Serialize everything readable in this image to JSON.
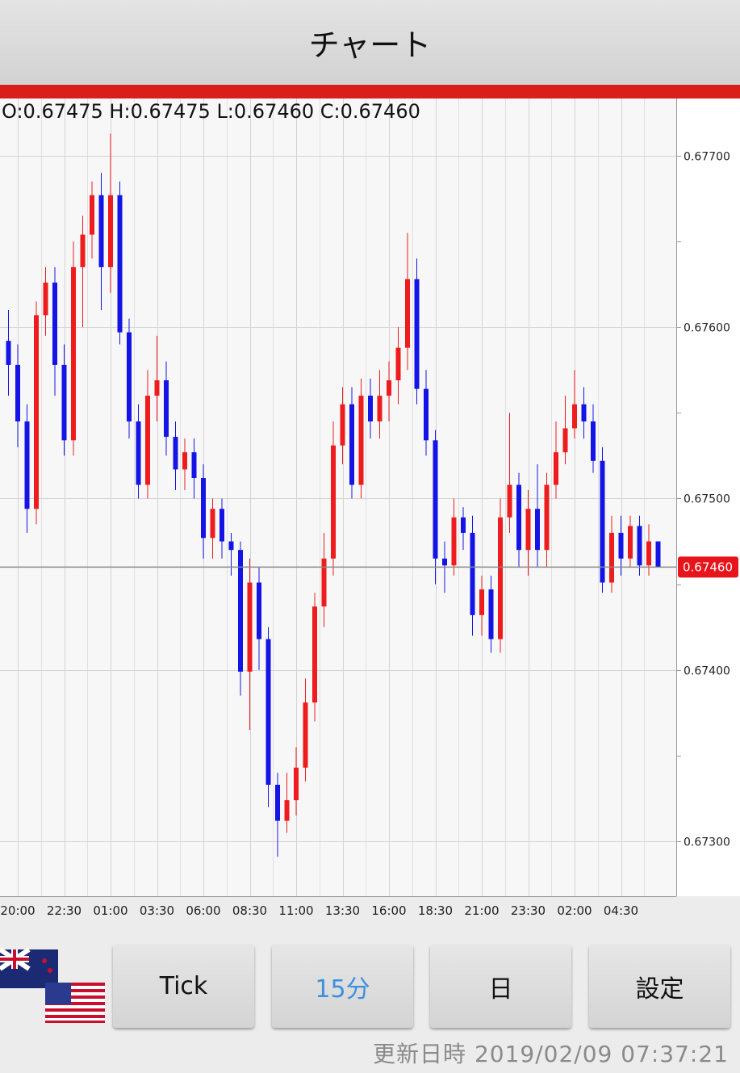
{
  "header": {
    "title": "チャート"
  },
  "chart_data": {
    "type": "candlestick",
    "ohlc_text": "O:0.67475 H:0.67475 L:0.67460 C:0.67460",
    "categories": [
      null,
      "20:00",
      null,
      null,
      null,
      null,
      "22:30",
      null,
      null,
      null,
      null,
      "01:00",
      null,
      null,
      null,
      null,
      "03:30",
      null,
      null,
      null,
      null,
      "06:00",
      null,
      null,
      null,
      null,
      "08:30",
      null,
      null,
      null,
      null,
      "11:00",
      null,
      null,
      null,
      null,
      "13:30",
      null,
      null,
      null,
      null,
      "16:00",
      null,
      null,
      null,
      null,
      "18:30",
      null,
      null,
      null,
      null,
      "21:00",
      null,
      null,
      null,
      null,
      "23:30",
      null,
      null,
      null,
      null,
      "02:00",
      null,
      null,
      null,
      null,
      "04:30",
      null,
      null,
      null,
      null
    ],
    "open": [
      0.67592,
      0.67578,
      0.67545,
      0.67494,
      0.67607,
      0.67626,
      0.67578,
      0.67534,
      0.67635,
      0.67654,
      0.67677,
      0.67635,
      0.67677,
      0.67597,
      0.67545,
      0.67508,
      0.6756,
      0.67569,
      0.67536,
      0.67517,
      0.67527,
      0.67512,
      0.67477,
      0.67494,
      0.67475,
      0.6747,
      0.67399,
      0.67451,
      0.67418,
      0.67333,
      0.67312,
      0.67324,
      0.67343,
      0.67381,
      0.67437,
      0.67465,
      0.67531,
      0.67555,
      0.67508,
      0.6756,
      0.67545,
      0.6756,
      0.67569,
      0.67588,
      0.67628,
      0.67564,
      0.67534,
      0.67465,
      0.67461,
      0.67489,
      0.6748,
      0.67432,
      0.67447,
      0.67418,
      0.67489,
      0.67508,
      0.6747,
      0.67494,
      0.6747,
      0.67508,
      0.67527,
      0.67541,
      0.67555,
      0.67545,
      0.67522,
      0.67451,
      0.6748,
      0.67465,
      0.67484,
      0.67461,
      0.67475
    ],
    "high": [
      0.6761,
      0.6759,
      0.67555,
      0.67615,
      0.67635,
      0.67635,
      0.6759,
      0.6765,
      0.67665,
      0.67685,
      0.6769,
      0.67713,
      0.67685,
      0.67605,
      0.67555,
      0.67575,
      0.67595,
      0.6758,
      0.67545,
      0.67535,
      0.67535,
      0.6752,
      0.675,
      0.675,
      0.6748,
      0.67475,
      0.67465,
      0.6746,
      0.67425,
      0.6734,
      0.6734,
      0.67355,
      0.67395,
      0.67445,
      0.6748,
      0.67545,
      0.67565,
      0.67565,
      0.6757,
      0.6757,
      0.67575,
      0.6758,
      0.676,
      0.67655,
      0.6764,
      0.67575,
      0.6754,
      0.67475,
      0.675,
      0.67495,
      0.6749,
      0.67455,
      0.67455,
      0.675,
      0.6755,
      0.67515,
      0.67505,
      0.6752,
      0.67515,
      0.67545,
      0.6756,
      0.67575,
      0.67565,
      0.67555,
      0.6753,
      0.6749,
      0.6749,
      0.6749,
      0.6749,
      0.67485,
      0.67475
    ],
    "low": [
      0.6756,
      0.6753,
      0.6748,
      0.67485,
      0.67595,
      0.6756,
      0.67525,
      0.67525,
      0.676,
      0.6764,
      0.6761,
      0.6762,
      0.6759,
      0.67535,
      0.675,
      0.675,
      0.67545,
      0.67525,
      0.67505,
      0.67505,
      0.675,
      0.67465,
      0.67465,
      0.67465,
      0.67455,
      0.67385,
      0.67365,
      0.674,
      0.6732,
      0.67291,
      0.67305,
      0.67315,
      0.67335,
      0.6737,
      0.67425,
      0.67455,
      0.6752,
      0.675,
      0.675,
      0.67535,
      0.67535,
      0.67545,
      0.67555,
      0.67575,
      0.67555,
      0.67525,
      0.6745,
      0.67445,
      0.67455,
      0.6747,
      0.6742,
      0.6742,
      0.6741,
      0.6741,
      0.6748,
      0.6746,
      0.67455,
      0.6746,
      0.6746,
      0.675,
      0.6752,
      0.67535,
      0.67535,
      0.67515,
      0.67445,
      0.67445,
      0.67455,
      0.6746,
      0.67455,
      0.67455,
      0.6746
    ],
    "close": [
      0.67578,
      0.67545,
      0.67494,
      0.67607,
      0.67626,
      0.67578,
      0.67534,
      0.67635,
      0.67654,
      0.67677,
      0.67635,
      0.67677,
      0.67597,
      0.67545,
      0.67508,
      0.6756,
      0.67569,
      0.67536,
      0.67517,
      0.67527,
      0.67512,
      0.67477,
      0.67494,
      0.67475,
      0.6747,
      0.67399,
      0.67451,
      0.67418,
      0.67333,
      0.67312,
      0.67324,
      0.67343,
      0.67381,
      0.67437,
      0.67465,
      0.67531,
      0.67555,
      0.67508,
      0.6756,
      0.67545,
      0.6756,
      0.67569,
      0.67588,
      0.67628,
      0.67564,
      0.67534,
      0.67465,
      0.67461,
      0.67489,
      0.6748,
      0.67432,
      0.67447,
      0.67418,
      0.67489,
      0.67508,
      0.6747,
      0.67494,
      0.6747,
      0.67508,
      0.67527,
      0.67541,
      0.67555,
      0.67545,
      0.67522,
      0.67451,
      0.6748,
      0.67465,
      0.67484,
      0.67461,
      0.67475,
      0.6746
    ],
    "up_color": "#ee1c1c",
    "down_color": "#1414e6",
    "ylim": [
      0.67268,
      0.67732
    ],
    "yticks": [
      {
        "value": 0.673,
        "label": "0.67300"
      },
      {
        "value": 0.674,
        "label": "0.67400"
      },
      {
        "value": 0.675,
        "label": "0.67500"
      },
      {
        "value": 0.676,
        "label": "0.67600"
      },
      {
        "value": 0.677,
        "label": "0.67700"
      }
    ],
    "yminorticks": [
      0.6735,
      0.6745,
      0.6755,
      0.6765
    ],
    "grid": true,
    "current": {
      "value": 0.6746,
      "label": "0.67460",
      "color": "#e8141c"
    }
  },
  "buttons": [
    "Tick",
    "15分",
    "日",
    "設定"
  ],
  "footer": {
    "updated_label": "更新日時",
    "updated_at": "2019/02/09 07:37:21"
  }
}
